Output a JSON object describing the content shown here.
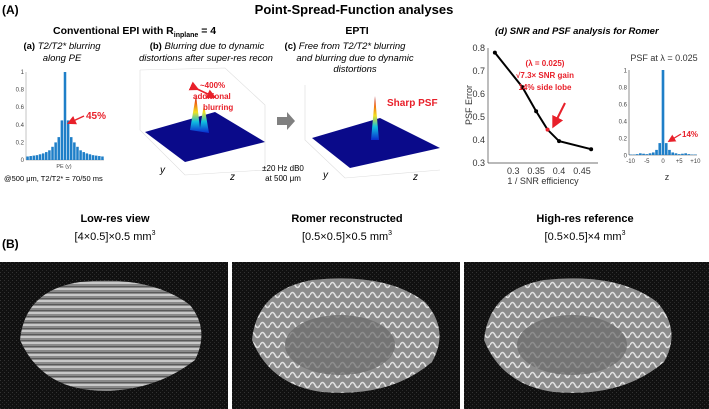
{
  "figure": {
    "title": "Point-Spread-Function analyses",
    "panel_A_label": "(A)",
    "panel_B_label": "(B)",
    "conventional_header": "Conventional EPI with R",
    "conventional_sub": "inplane",
    "conventional_tail": " = 4",
    "epti_header": "EPTI"
  },
  "panel_a": {
    "label": "(a)",
    "title_line1": "T2/T2* blurring",
    "title_line2": "along PE",
    "xlabel": "PE (y)",
    "annotation": "45%",
    "footnote": "@500 μm, T2/T2* = 70/50 ms"
  },
  "panel_b": {
    "label": "(b)",
    "title_line1": "Blurring due to dynamic",
    "title_line2": "distortions after super-res recon",
    "annotation_line1": "~400%",
    "annotation_line2": "additional",
    "annotation_line3": "blurring",
    "axis_y": "y",
    "axis_z": "z",
    "note_line1": "±20 Hz dB0",
    "note_line2": "at 500 μm"
  },
  "panel_c": {
    "label": "(c)",
    "title_line1": "Free from T2/T2* blurring",
    "title_line2": "and blurring due to dynamic",
    "title_line3": "distortions",
    "annotation": "Sharp PSF",
    "axis_y": "y",
    "axis_z": "z"
  },
  "panel_d": {
    "title": "(d) SNR and PSF analysis for Romer",
    "annotation_line1": "(λ = 0.025)",
    "annotation_line2": "√7.3× SNR gain",
    "annotation_line3": "14% side lobe",
    "psf_title": "PSF at λ = 0.025",
    "psf_annotation": "14%"
  },
  "chart_data": [
    {
      "type": "bar",
      "title": "",
      "xlabel": "PE (y)",
      "ylabel": "",
      "ylim": [
        0,
        1
      ],
      "yticks": [
        "0",
        "0.2",
        "0.4",
        "0.6",
        "0.8",
        "1"
      ],
      "values": [
        0.04,
        0.045,
        0.05,
        0.055,
        0.065,
        0.075,
        0.09,
        0.11,
        0.15,
        0.2,
        0.26,
        0.45,
        1,
        0.45,
        0.26,
        0.2,
        0.15,
        0.11,
        0.09,
        0.075,
        0.065,
        0.055,
        0.05,
        0.045,
        0.04
      ]
    },
    {
      "type": "line",
      "title": "",
      "xlabel": "1 / SNR efficiency",
      "ylabel": "PSF Error",
      "xlim": [
        0.245,
        0.485
      ],
      "ylim": [
        0.3,
        0.8
      ],
      "xticks": [
        "0.3",
        "0.35",
        "0.4",
        "0.45"
      ],
      "yticks": [
        "0.3",
        "0.4",
        "0.5",
        "0.6",
        "0.7",
        "0.8"
      ],
      "x": [
        0.26,
        0.32,
        0.35,
        0.375,
        0.4,
        0.47
      ],
      "y": [
        0.78,
        0.63,
        0.525,
        0.445,
        0.395,
        0.36
      ],
      "highlight_index": 3,
      "line_color": "#000000",
      "highlight_color": "#e8202a"
    },
    {
      "type": "bar",
      "title": "PSF at λ = 0.025",
      "xlabel": "z",
      "ylim": [
        0,
        1
      ],
      "yticks": [
        "0",
        "0.2",
        "0.4",
        "0.6",
        "0.8",
        "1"
      ],
      "xticks": [
        "-10",
        "-5",
        "0",
        "+5",
        "+10"
      ],
      "x": [
        -10,
        -9,
        -8,
        -7,
        -6,
        -5,
        -4,
        -3,
        -2,
        -1,
        0,
        1,
        2,
        3,
        4,
        5,
        6,
        7,
        8,
        9,
        10
      ],
      "values": [
        0.005,
        0.005,
        0.01,
        0.02,
        0.015,
        0.01,
        0.02,
        0.03,
        0.06,
        0.14,
        1,
        0.14,
        0.06,
        0.03,
        0.02,
        0.01,
        0.015,
        0.02,
        0.01,
        0.005,
        0.005
      ]
    }
  ],
  "panel_B": {
    "images": [
      {
        "title": "Low-res view",
        "dims": "[4×0.5]×0.5 mm",
        "sup": "3"
      },
      {
        "title": "Romer reconstructed",
        "dims": "[0.5×0.5]×0.5 mm",
        "sup": "3"
      },
      {
        "title": "High-res reference",
        "dims": "[0.5×0.5]×4 mm",
        "sup": "3"
      }
    ]
  },
  "colors": {
    "accent_red": "#e8202a",
    "bar_blue": "#1f7fc8",
    "surface_navy": "#0a0a8a"
  }
}
